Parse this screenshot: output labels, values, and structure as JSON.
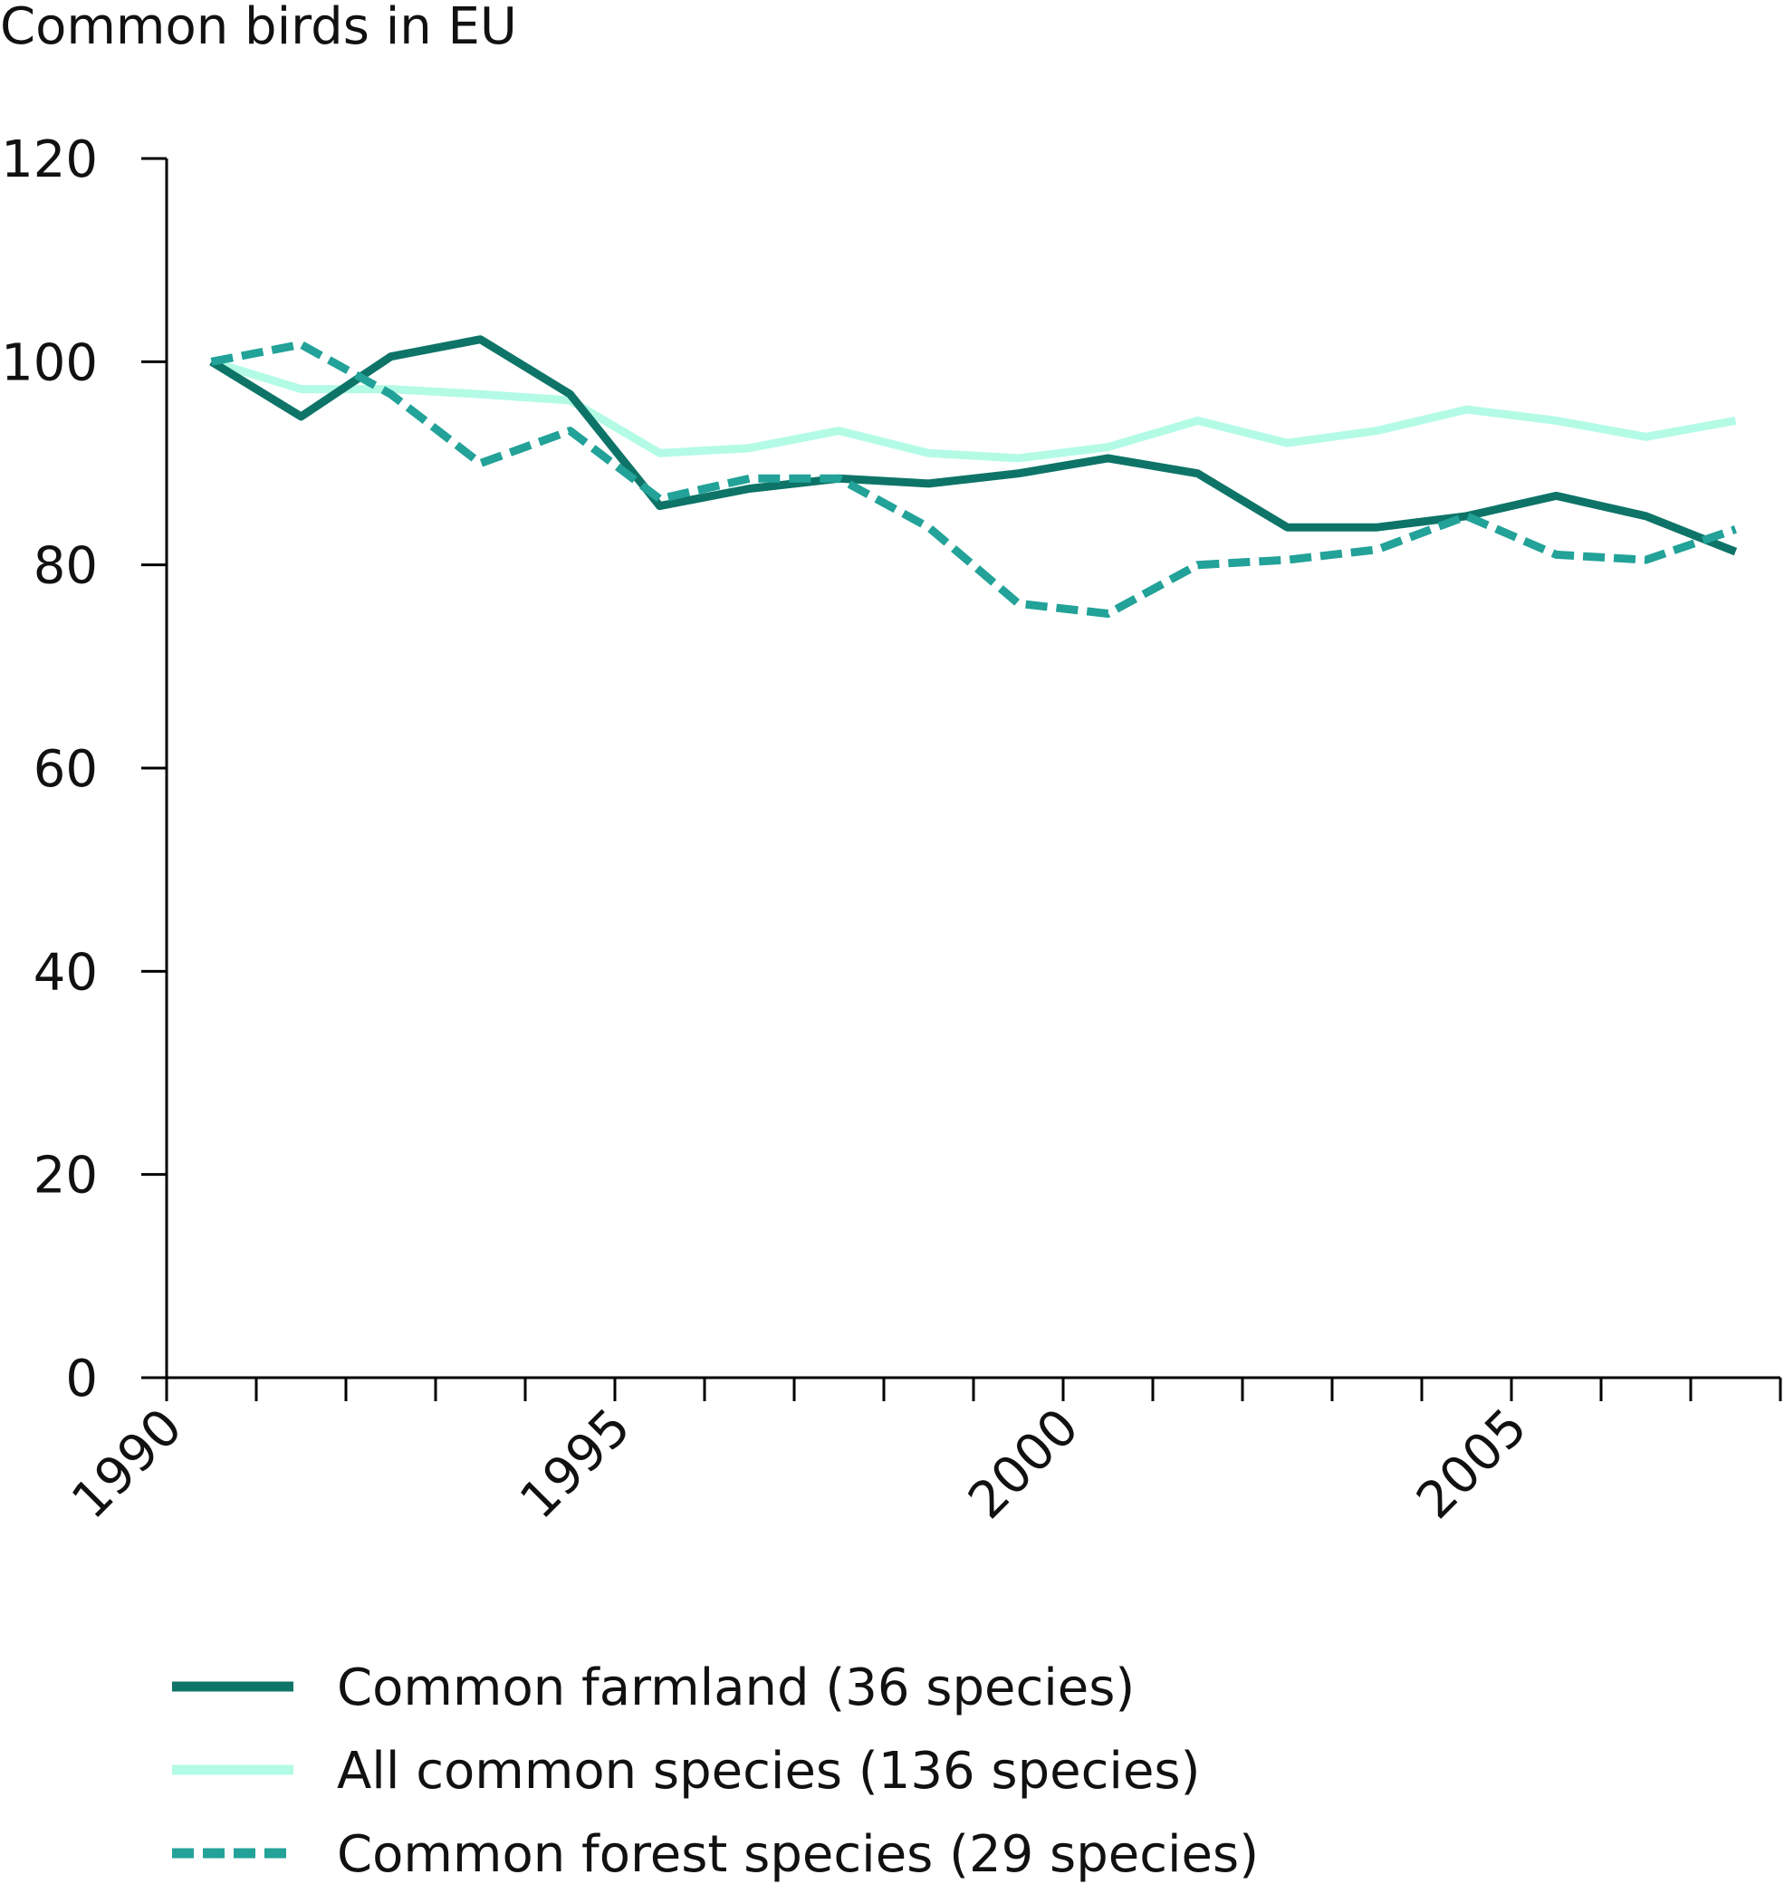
{
  "chart_data": {
    "type": "line",
    "title": "Common birds in EU",
    "xlabel": "",
    "ylabel": "",
    "ylim": [
      0,
      120
    ],
    "y_ticks": [
      0,
      20,
      40,
      60,
      80,
      100,
      120
    ],
    "x_range": [
      1990,
      2008
    ],
    "x_tick_labels": [
      "1990",
      "1995",
      "2000",
      "2005"
    ],
    "x_tick_values": [
      1990,
      1995,
      2000,
      2005
    ],
    "x_minor_ticks": [
      1990,
      1991,
      1992,
      1993,
      1994,
      1995,
      1996,
      1997,
      1998,
      1999,
      2000,
      2001,
      2002,
      2003,
      2004,
      2005,
      2006,
      2007,
      2008
    ],
    "grid": false,
    "legend_position": "bottom",
    "x": [
      1990.5,
      1991.5,
      1992.5,
      1993.5,
      1994.5,
      1995.5,
      1996.5,
      1997.5,
      1998.5,
      1999.5,
      2000.5,
      2001.5,
      2002.5,
      2003.5,
      2004.5,
      2005.5,
      2006.5,
      2007.5
    ],
    "series": [
      {
        "name": "Common farmland (36 species)",
        "color": "#0e7468",
        "style": "solid",
        "values": [
          100,
          94.6,
          100.5,
          102.2,
          96.8,
          85.8,
          87.5,
          88.5,
          88,
          89,
          90.5,
          89,
          83.7,
          83.7,
          84.8,
          86.8,
          84.8,
          81.3
        ]
      },
      {
        "name": "All common species (136 species)",
        "color": "#b3fbe5",
        "style": "solid",
        "values": [
          100,
          97.3,
          97.3,
          96.8,
          96.2,
          91,
          91.5,
          93.2,
          91,
          90.5,
          91.6,
          94.2,
          92,
          93.2,
          95.3,
          94.2,
          92.6,
          94.2
        ]
      },
      {
        "name": "Common forest species (29 species)",
        "color": "#22a298",
        "style": "dashed",
        "values": [
          100,
          101.7,
          96.8,
          90,
          93.2,
          86.5,
          88.5,
          88.5,
          83.7,
          76.2,
          75.2,
          80,
          80.5,
          81.5,
          84.8,
          81,
          80.5,
          83.5
        ]
      }
    ]
  }
}
